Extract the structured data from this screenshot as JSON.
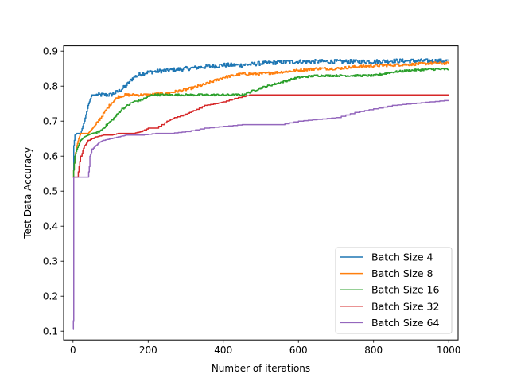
{
  "chart_data": {
    "type": "line",
    "title": "",
    "xlabel": "Number of iterations",
    "ylabel": "Test Data Accuracy",
    "xlim": [
      -25,
      1025
    ],
    "ylim": [
      0.075,
      0.915
    ],
    "xticks": [
      0,
      200,
      400,
      600,
      800,
      1000
    ],
    "yticks": [
      0.1,
      0.2,
      0.3,
      0.4,
      0.5,
      0.6,
      0.7,
      0.8,
      0.9
    ],
    "grid": false,
    "legend_position": "lower-right",
    "series": [
      {
        "name": "Batch Size 4",
        "color": "#1f77b4",
        "x": [
          0,
          2,
          5,
          10,
          20,
          30,
          40,
          45,
          50,
          60,
          80,
          100,
          120,
          140,
          160,
          180,
          200,
          250,
          300,
          350,
          400,
          450,
          500,
          550,
          600,
          650,
          700,
          750,
          800,
          850,
          900,
          950,
          1000
        ],
        "y": [
          0.54,
          0.63,
          0.66,
          0.665,
          0.665,
          0.7,
          0.745,
          0.76,
          0.775,
          0.775,
          0.775,
          0.775,
          0.785,
          0.8,
          0.825,
          0.835,
          0.84,
          0.845,
          0.85,
          0.855,
          0.86,
          0.86,
          0.865,
          0.868,
          0.87,
          0.87,
          0.87,
          0.87,
          0.87,
          0.872,
          0.872,
          0.872,
          0.872
        ],
        "noise": 0.006
      },
      {
        "name": "Batch Size 8",
        "color": "#ff7f0e",
        "x": [
          0,
          5,
          10,
          15,
          20,
          30,
          40,
          60,
          80,
          100,
          120,
          140,
          160,
          200,
          250,
          300,
          350,
          400,
          450,
          500,
          550,
          600,
          650,
          700,
          750,
          800,
          850,
          900,
          950,
          1000
        ],
        "y": [
          0.54,
          0.6,
          0.63,
          0.65,
          0.665,
          0.665,
          0.665,
          0.69,
          0.72,
          0.75,
          0.77,
          0.775,
          0.775,
          0.775,
          0.78,
          0.79,
          0.805,
          0.825,
          0.835,
          0.835,
          0.84,
          0.845,
          0.85,
          0.85,
          0.855,
          0.858,
          0.86,
          0.862,
          0.865,
          0.865
        ],
        "noise": 0.004
      },
      {
        "name": "Batch Size 16",
        "color": "#2ca02c",
        "x": [
          0,
          5,
          10,
          20,
          30,
          50,
          70,
          90,
          110,
          130,
          160,
          180,
          210,
          250,
          300,
          350,
          400,
          450,
          500,
          550,
          600,
          650,
          700,
          750,
          800,
          850,
          900,
          950,
          1000
        ],
        "y": [
          0.54,
          0.6,
          0.62,
          0.645,
          0.655,
          0.665,
          0.67,
          0.69,
          0.71,
          0.735,
          0.755,
          0.76,
          0.775,
          0.775,
          0.775,
          0.775,
          0.775,
          0.775,
          0.795,
          0.81,
          0.825,
          0.83,
          0.83,
          0.83,
          0.83,
          0.84,
          0.845,
          0.848,
          0.848
        ],
        "noise": 0.003
      },
      {
        "name": "Batch Size 32",
        "color": "#d62728",
        "x": [
          0,
          10,
          20,
          30,
          40,
          60,
          80,
          100,
          120,
          140,
          160,
          180,
          200,
          220,
          250,
          270,
          300,
          320,
          350,
          380,
          400,
          430,
          470,
          500,
          600,
          700,
          800,
          900,
          1000
        ],
        "y": [
          0.54,
          0.54,
          0.6,
          0.63,
          0.645,
          0.655,
          0.66,
          0.66,
          0.665,
          0.665,
          0.665,
          0.67,
          0.68,
          0.68,
          0.7,
          0.71,
          0.72,
          0.73,
          0.745,
          0.75,
          0.755,
          0.765,
          0.775,
          0.775,
          0.775,
          0.775,
          0.775,
          0.775,
          0.775
        ],
        "noise": 0
      },
      {
        "name": "Batch Size 64",
        "color": "#9467bd",
        "x": [
          0,
          1,
          2,
          5,
          10,
          20,
          40,
          45,
          50,
          60,
          70,
          80,
          100,
          120,
          140,
          180,
          220,
          260,
          300,
          350,
          400,
          450,
          500,
          550,
          600,
          650,
          700,
          750,
          800,
          850,
          900,
          950,
          1000
        ],
        "y": [
          0.105,
          0.13,
          0.54,
          0.54,
          0.54,
          0.54,
          0.54,
          0.6,
          0.62,
          0.63,
          0.64,
          0.645,
          0.65,
          0.655,
          0.66,
          0.66,
          0.665,
          0.665,
          0.67,
          0.68,
          0.685,
          0.69,
          0.69,
          0.69,
          0.7,
          0.705,
          0.71,
          0.725,
          0.735,
          0.745,
          0.75,
          0.755,
          0.76
        ],
        "noise": 0
      }
    ]
  }
}
